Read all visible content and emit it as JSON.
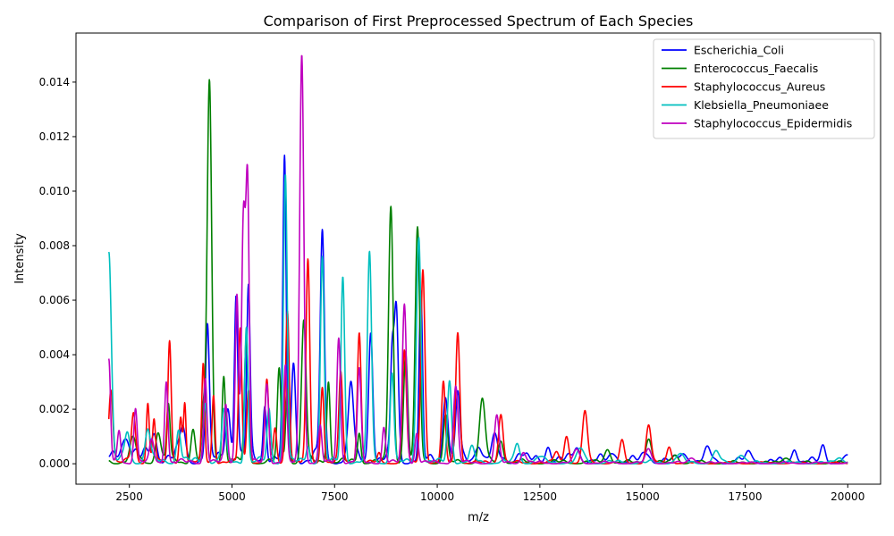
{
  "chart_data": {
    "type": "line",
    "title": "Comparison of First Preprocessed Spectrum of Each Species",
    "xlabel": "m/z",
    "ylabel": "Intensity",
    "xlim": [
      1200,
      20800
    ],
    "ylim": [
      -0.00075,
      0.0158
    ],
    "xticks": [
      2500,
      5000,
      7500,
      10000,
      12500,
      15000,
      17500,
      20000
    ],
    "xtick_labels": [
      "2500",
      "5000",
      "7500",
      "10000",
      "12500",
      "15000",
      "17500",
      "20000"
    ],
    "yticks": [
      0.0,
      0.002,
      0.004,
      0.006,
      0.008,
      0.01,
      0.012,
      0.014
    ],
    "ytick_labels": [
      "0.000",
      "0.002",
      "0.004",
      "0.006",
      "0.008",
      "0.010",
      "0.012",
      "0.014"
    ],
    "grid": false,
    "legend": "upper right",
    "series": [
      {
        "name": "Escherichia_Coli",
        "color": "#0000ff",
        "baseline": 0.0007,
        "peaks": [
          [
            2400,
            0.0009,
            100
          ],
          [
            3100,
            0.001,
            70
          ],
          [
            3800,
            0.0012,
            60
          ],
          [
            4400,
            0.0047,
            45
          ],
          [
            4900,
            0.002,
            60
          ],
          [
            5100,
            0.0061,
            40
          ],
          [
            5400,
            0.0062,
            40
          ],
          [
            5800,
            0.0021,
            40
          ],
          [
            6280,
            0.0108,
            40
          ],
          [
            6500,
            0.0035,
            50
          ],
          [
            7200,
            0.0083,
            50
          ],
          [
            7900,
            0.0028,
            60
          ],
          [
            8380,
            0.0048,
            50
          ],
          [
            8900,
            0.0035,
            40
          ],
          [
            9000,
            0.0056,
            50
          ],
          [
            9600,
            0.0059,
            40
          ],
          [
            10200,
            0.0024,
            60
          ],
          [
            10500,
            0.0025,
            50
          ],
          [
            11000,
            0.0006,
            80
          ],
          [
            11400,
            0.0007,
            80
          ],
          [
            12000,
            0.0003,
            80
          ],
          [
            12700,
            0.0006,
            60
          ],
          [
            13400,
            0.0005,
            80
          ],
          [
            14300,
            0.0003,
            90
          ],
          [
            15100,
            0.0003,
            90
          ],
          [
            16000,
            0.0003,
            100
          ],
          [
            16600,
            0.0004,
            80
          ],
          [
            17600,
            0.0003,
            90
          ],
          [
            18700,
            0.0005,
            60
          ],
          [
            19400,
            0.0006,
            60
          ],
          [
            20000,
            0.0002,
            50
          ]
        ]
      },
      {
        "name": "Enterococcus_Faecalis",
        "color": "#008000",
        "baseline": 0.0003,
        "peaks": [
          [
            2600,
            0.0008,
            70
          ],
          [
            3200,
            0.0011,
            60
          ],
          [
            3450,
            0.0021,
            40
          ],
          [
            4050,
            0.0012,
            50
          ],
          [
            4300,
            0.0017,
            40
          ],
          [
            4450,
            0.014,
            55
          ],
          [
            4800,
            0.0032,
            40
          ],
          [
            5350,
            0.0045,
            45
          ],
          [
            6150,
            0.0033,
            45
          ],
          [
            6350,
            0.0027,
            40
          ],
          [
            6750,
            0.0052,
            55
          ],
          [
            7350,
            0.003,
            40
          ],
          [
            8100,
            0.0011,
            40
          ],
          [
            8870,
            0.0094,
            55
          ],
          [
            9230,
            0.004,
            50
          ],
          [
            9520,
            0.0085,
            55
          ],
          [
            10200,
            0.0017,
            50
          ],
          [
            11100,
            0.0023,
            70
          ],
          [
            11550,
            0.0008,
            60
          ],
          [
            14150,
            0.0005,
            70
          ],
          [
            15150,
            0.0009,
            70
          ],
          [
            15800,
            0.0003,
            70
          ],
          [
            18500,
            0.0002,
            90
          ]
        ]
      },
      {
        "name": "Staphylococcus_Aureus",
        "color": "#ff0000",
        "baseline": 0.0002,
        "peaks": [
          [
            2050,
            0.0027,
            50
          ],
          [
            2600,
            0.0018,
            50
          ],
          [
            2950,
            0.0022,
            35
          ],
          [
            3100,
            0.0016,
            35
          ],
          [
            3480,
            0.0044,
            40
          ],
          [
            3750,
            0.0017,
            35
          ],
          [
            3850,
            0.0022,
            30
          ],
          [
            4300,
            0.0036,
            35
          ],
          [
            4550,
            0.0025,
            35
          ],
          [
            5200,
            0.0049,
            40
          ],
          [
            5400,
            0.0027,
            40
          ],
          [
            5850,
            0.003,
            45
          ],
          [
            6050,
            0.0012,
            40
          ],
          [
            6350,
            0.0056,
            45
          ],
          [
            6850,
            0.0074,
            45
          ],
          [
            7200,
            0.0028,
            40
          ],
          [
            7650,
            0.0033,
            45
          ],
          [
            8100,
            0.0048,
            45
          ],
          [
            8580,
            0.0003,
            40
          ],
          [
            9200,
            0.0041,
            50
          ],
          [
            9650,
            0.0071,
            50
          ],
          [
            10150,
            0.0029,
            45
          ],
          [
            10500,
            0.0048,
            50
          ],
          [
            11550,
            0.0018,
            55
          ],
          [
            12900,
            0.0004,
            60
          ],
          [
            13150,
            0.001,
            55
          ],
          [
            13600,
            0.0019,
            60
          ],
          [
            14500,
            0.0008,
            55
          ],
          [
            15150,
            0.0014,
            60
          ],
          [
            15650,
            0.0006,
            55
          ]
        ]
      },
      {
        "name": "Klebsiella_Pneumoniaee",
        "color": "#00bfbf",
        "baseline": 0.0003,
        "peaks": [
          [
            2000,
            0.0077,
            60
          ],
          [
            2450,
            0.0011,
            60
          ],
          [
            2950,
            0.0012,
            60
          ],
          [
            3700,
            0.0012,
            50
          ],
          [
            4350,
            0.0022,
            45
          ],
          [
            4800,
            0.0019,
            50
          ],
          [
            5350,
            0.005,
            40
          ],
          [
            5900,
            0.0019,
            45
          ],
          [
            6300,
            0.0106,
            45
          ],
          [
            6850,
            0.0006,
            40
          ],
          [
            7200,
            0.0075,
            45
          ],
          [
            7700,
            0.0068,
            45
          ],
          [
            8350,
            0.0077,
            50
          ],
          [
            8900,
            0.0033,
            45
          ],
          [
            9550,
            0.0083,
            55
          ],
          [
            10300,
            0.003,
            50
          ],
          [
            10850,
            0.0005,
            60
          ],
          [
            11950,
            0.0007,
            60
          ],
          [
            12500,
            0.0002,
            80
          ],
          [
            13500,
            0.0005,
            80
          ],
          [
            15900,
            0.0003,
            90
          ],
          [
            16800,
            0.0004,
            80
          ],
          [
            17400,
            0.0003,
            90
          ],
          [
            19800,
            0.0002,
            90
          ]
        ]
      },
      {
        "name": "Staphylococcus_Epidermidis",
        "color": "#bf00bf",
        "baseline": 0.0002,
        "peaks": [
          [
            2000,
            0.0037,
            40
          ],
          [
            2250,
            0.0011,
            40
          ],
          [
            2650,
            0.002,
            40
          ],
          [
            3050,
            0.0008,
            50
          ],
          [
            3400,
            0.003,
            40
          ],
          [
            4350,
            0.0031,
            40
          ],
          [
            4850,
            0.0021,
            40
          ],
          [
            5120,
            0.0062,
            40
          ],
          [
            5280,
            0.009,
            45
          ],
          [
            5380,
            0.01,
            40
          ],
          [
            5850,
            0.0029,
            45
          ],
          [
            6300,
            0.0035,
            40
          ],
          [
            6700,
            0.015,
            50
          ],
          [
            7150,
            0.0013,
            40
          ],
          [
            7600,
            0.0046,
            45
          ],
          [
            8100,
            0.0034,
            45
          ],
          [
            8700,
            0.0013,
            40
          ],
          [
            9200,
            0.0058,
            50
          ],
          [
            9500,
            0.0011,
            40
          ],
          [
            10450,
            0.0028,
            55
          ],
          [
            11450,
            0.0017,
            55
          ],
          [
            12100,
            0.0004,
            60
          ],
          [
            13400,
            0.0005,
            70
          ],
          [
            15150,
            0.0005,
            70
          ],
          [
            16200,
            0.0002,
            80
          ]
        ]
      }
    ]
  }
}
